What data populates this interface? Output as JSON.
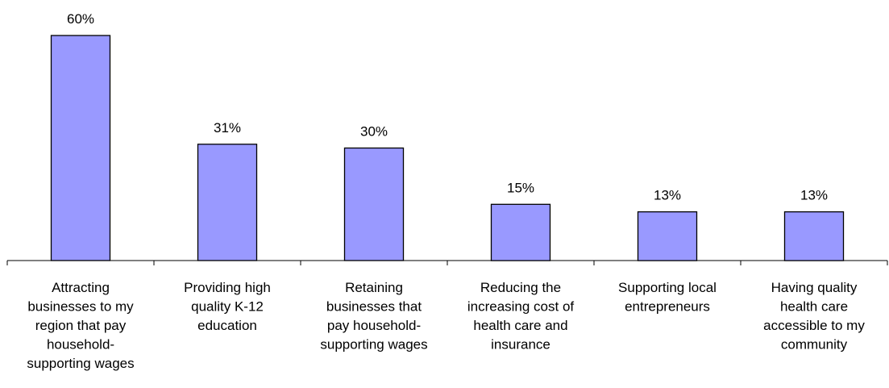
{
  "chart_data": {
    "type": "bar",
    "categories": [
      "Attracting businesses to my region that pay household-supporting wages",
      "Providing high quality K-12 education",
      "Retaining businesses that pay household-supporting wages",
      "Reducing the increasing cost of health care and insurance",
      "Supporting local entrepreneurs",
      "Having quality health care accessible to my community"
    ],
    "category_lines": [
      [
        "Attracting",
        "businesses to my",
        "region that pay",
        "household-",
        "supporting wages"
      ],
      [
        "Providing high",
        "quality K-12",
        "education"
      ],
      [
        "Retaining",
        "businesses that",
        "pay household-",
        "supporting wages"
      ],
      [
        "Reducing the",
        "increasing cost of",
        "health care and",
        "insurance"
      ],
      [
        "Supporting local",
        "entrepreneurs"
      ],
      [
        "Having quality",
        "health care",
        "accessible to my",
        "community"
      ]
    ],
    "values": [
      60,
      31,
      30,
      15,
      13,
      13
    ],
    "value_labels": [
      "60%",
      "31%",
      "30%",
      "15%",
      "13%",
      "13%"
    ],
    "ylim": [
      0,
      60
    ],
    "grid": false,
    "legend": "none",
    "colors": {
      "bar_fill": "#9999ff",
      "bar_stroke": "#000000",
      "axis": "#000000",
      "text": "#000000"
    }
  }
}
